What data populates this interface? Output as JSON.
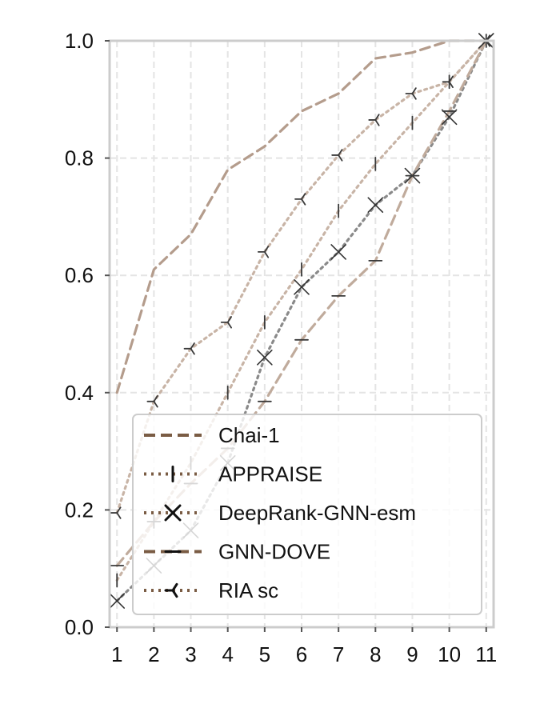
{
  "chart_data": {
    "type": "line",
    "title": "",
    "xlabel": "",
    "ylabel": "",
    "x": [
      1,
      2,
      3,
      4,
      5,
      6,
      7,
      8,
      9,
      10,
      11
    ],
    "xlim": [
      0.8,
      11.2
    ],
    "ylim": [
      0,
      1.0
    ],
    "xticks": [
      "1",
      "2",
      "3",
      "4",
      "5",
      "6",
      "7",
      "8",
      "9",
      "10",
      "11"
    ],
    "yticks": [
      "0.0",
      "0.2",
      "0.4",
      "0.6",
      "0.8",
      "1.0"
    ],
    "grid": true,
    "legend_position": "lower-right",
    "series": [
      {
        "name": "Chai-1",
        "linestyle": "dashed",
        "marker": "none",
        "color": "#b49c8c",
        "values": [
          0.4,
          0.61,
          0.67,
          0.78,
          0.82,
          0.88,
          0.91,
          0.97,
          0.98,
          1.0,
          1.0
        ]
      },
      {
        "name": "APPRAISE",
        "linestyle": "dotted",
        "marker": "vline",
        "color": "#c8b4a6",
        "values": [
          0.08,
          0.18,
          0.28,
          0.4,
          0.52,
          0.61,
          0.71,
          0.79,
          0.86,
          0.93,
          1.0
        ]
      },
      {
        "name": "DeepRank-GNN-esm",
        "linestyle": "dotted",
        "marker": "x",
        "color": "#8a8a8a",
        "values": [
          0.045,
          0.105,
          0.165,
          0.28,
          0.46,
          0.58,
          0.64,
          0.72,
          0.77,
          0.87,
          1.0
        ]
      },
      {
        "name": "GNN-DOVE",
        "linestyle": "dashed",
        "marker": "hline",
        "color": "#c0ab9c",
        "values": [
          0.105,
          0.18,
          0.245,
          0.305,
          0.385,
          0.49,
          0.565,
          0.625,
          0.77,
          0.88,
          1.0
        ]
      },
      {
        "name": "RIA sc",
        "linestyle": "dotted",
        "marker": "tri",
        "color": "#c8b4a6",
        "values": [
          0.195,
          0.385,
          0.475,
          0.52,
          0.64,
          0.73,
          0.805,
          0.865,
          0.91,
          0.93,
          1.0
        ]
      }
    ],
    "legend": {
      "entries": [
        "Chai-1",
        "APPRAISE",
        "DeepRank-GNN-esm",
        "GNN-DOVE",
        "RIA sc"
      ],
      "handle_color": "#7a5c44"
    }
  }
}
